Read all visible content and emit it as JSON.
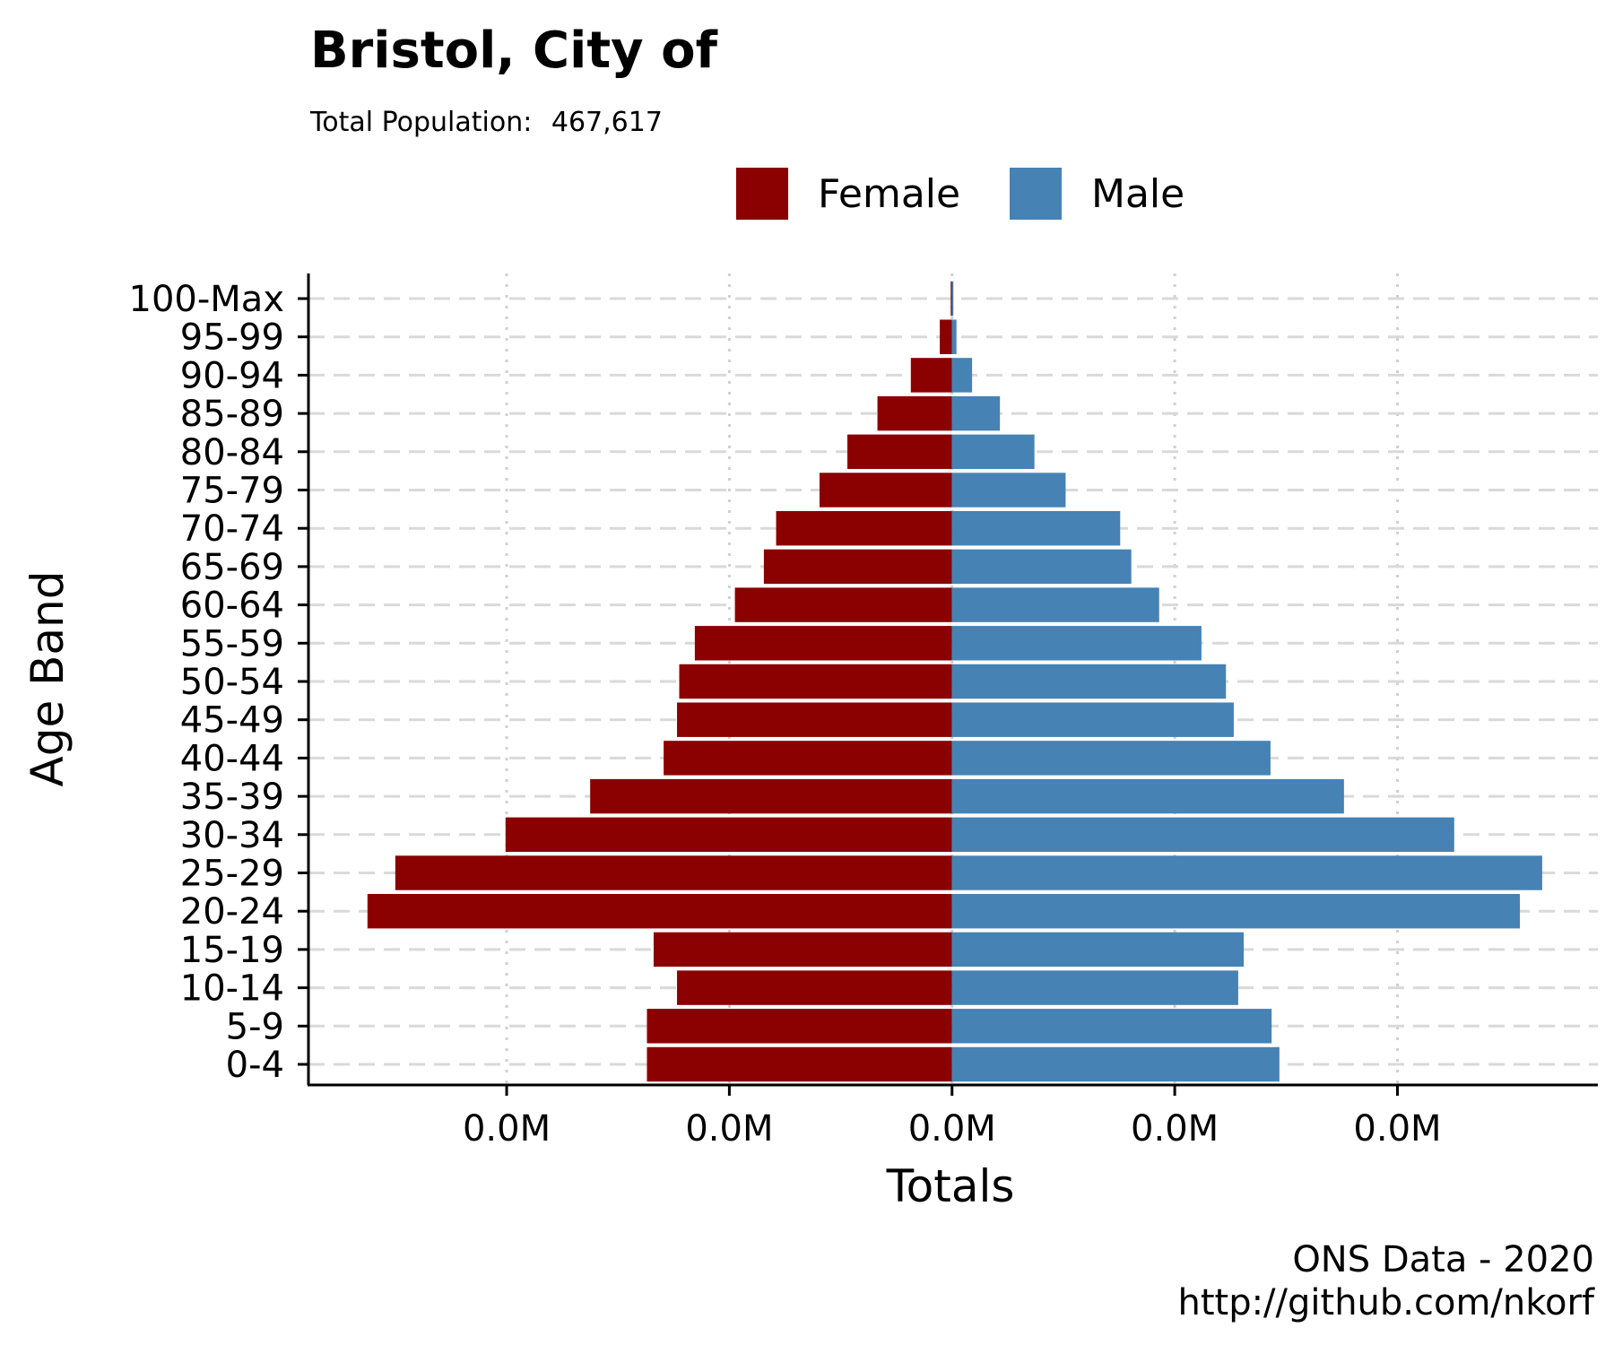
{
  "chart_data": {
    "type": "bar",
    "orientation": "horizontal",
    "title": "Bristol, City of",
    "subtitle_label": "Total Population:",
    "subtitle_value": "467,617",
    "xlabel": "Totals",
    "ylabel": "Age Band",
    "x_tick_labels": [
      "0.0M",
      "0.0M",
      "0.0M",
      "0.0M",
      "0.0M"
    ],
    "x_ticks": [
      -20000,
      -10000,
      0,
      10000,
      20000
    ],
    "xlim": [
      -28900,
      29000
    ],
    "grid": true,
    "legend_position": "top",
    "categories": [
      "0-4",
      "5-9",
      "10-14",
      "15-19",
      "20-24",
      "25-29",
      "30-34",
      "35-39",
      "40-44",
      "45-49",
      "50-54",
      "55-59",
      "60-64",
      "65-69",
      "70-74",
      "75-79",
      "80-84",
      "85-89",
      "90-94",
      "95-99",
      "100-Max"
    ],
    "series": [
      {
        "name": "Female",
        "color": "#8b0000",
        "values": [
          -13700,
          -13700,
          -12350,
          -13400,
          -26250,
          -25000,
          -20050,
          -16250,
          -12950,
          -12350,
          -12250,
          -11550,
          -9750,
          -8450,
          -7900,
          -5950,
          -4700,
          -3350,
          -1850,
          -550,
          -60
        ]
      },
      {
        "name": "Male",
        "color": "#4682b4",
        "values": [
          14700,
          14350,
          12850,
          13100,
          25500,
          26500,
          22550,
          17600,
          14300,
          12650,
          12300,
          11200,
          9300,
          8050,
          7550,
          5100,
          3700,
          2150,
          900,
          200,
          40
        ]
      }
    ],
    "caption": [
      "ONS Data - 2020",
      "http://github.com/nkorf"
    ]
  }
}
